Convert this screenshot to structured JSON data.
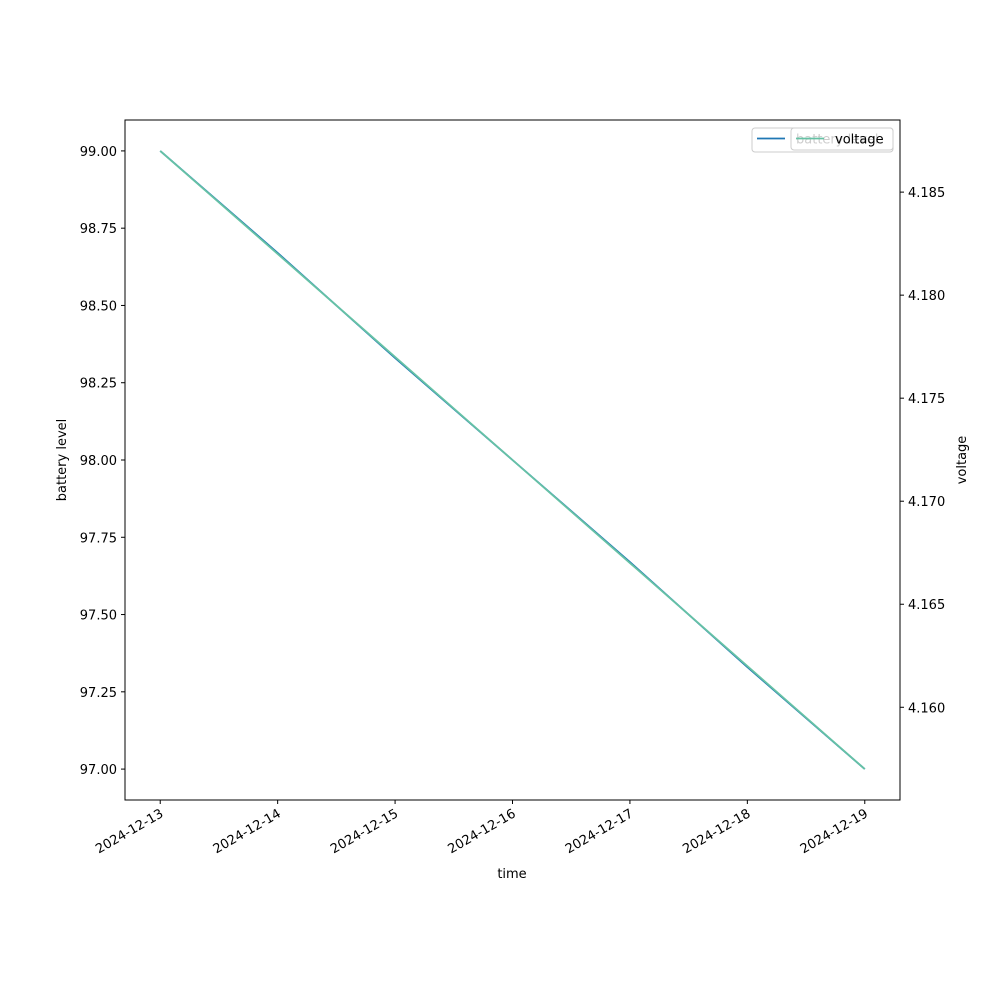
{
  "chart_data": {
    "type": "line",
    "x_label": "time",
    "y_label": "battery level",
    "y2_label": "voltage",
    "x": [
      "2024-12-13",
      "2024-12-14",
      "2024-12-15",
      "2024-12-16",
      "2024-12-17",
      "2024-12-18",
      "2024-12-19"
    ],
    "series": [
      {
        "name": "battery level",
        "color": "#1f77b4",
        "values": [
          99,
          98.67,
          98.33,
          98,
          97.67,
          97.33,
          97
        ]
      },
      {
        "name": "voltage",
        "color": "#66c2a5",
        "axis": "y2",
        "values": [
          4.187,
          4.182,
          4.177,
          4.172,
          4.167,
          4.162,
          4.157
        ]
      }
    ],
    "xticks": [
      "2024-12-13",
      "2024-12-14",
      "2024-12-15",
      "2024-12-16",
      "2024-12-17",
      "2024-12-18",
      "2024-12-19"
    ],
    "ylim": [
      96.9,
      99.1
    ],
    "yticks": [
      {
        "value": 97,
        "label": "97.00"
      },
      {
        "value": 97.25,
        "label": "97.25"
      },
      {
        "value": 97.5,
        "label": "97.50"
      },
      {
        "value": 97.75,
        "label": "97.75"
      },
      {
        "value": 98,
        "label": "98.00"
      },
      {
        "value": 98.25,
        "label": "98.25"
      },
      {
        "value": 98.5,
        "label": "98.50"
      },
      {
        "value": 98.75,
        "label": "98.75"
      },
      {
        "value": 99,
        "label": "99.00"
      }
    ],
    "y2lim": [
      4.1555,
      4.1885
    ],
    "y2ticks": [
      {
        "value": 4.16,
        "label": "4.160"
      },
      4.165,
      {
        "value": 4.17,
        "label": "4.170"
      },
      4.175,
      {
        "value": 4.18,
        "label": "4.180"
      },
      4.185
    ],
    "grid": false,
    "legend": "upper right"
  }
}
